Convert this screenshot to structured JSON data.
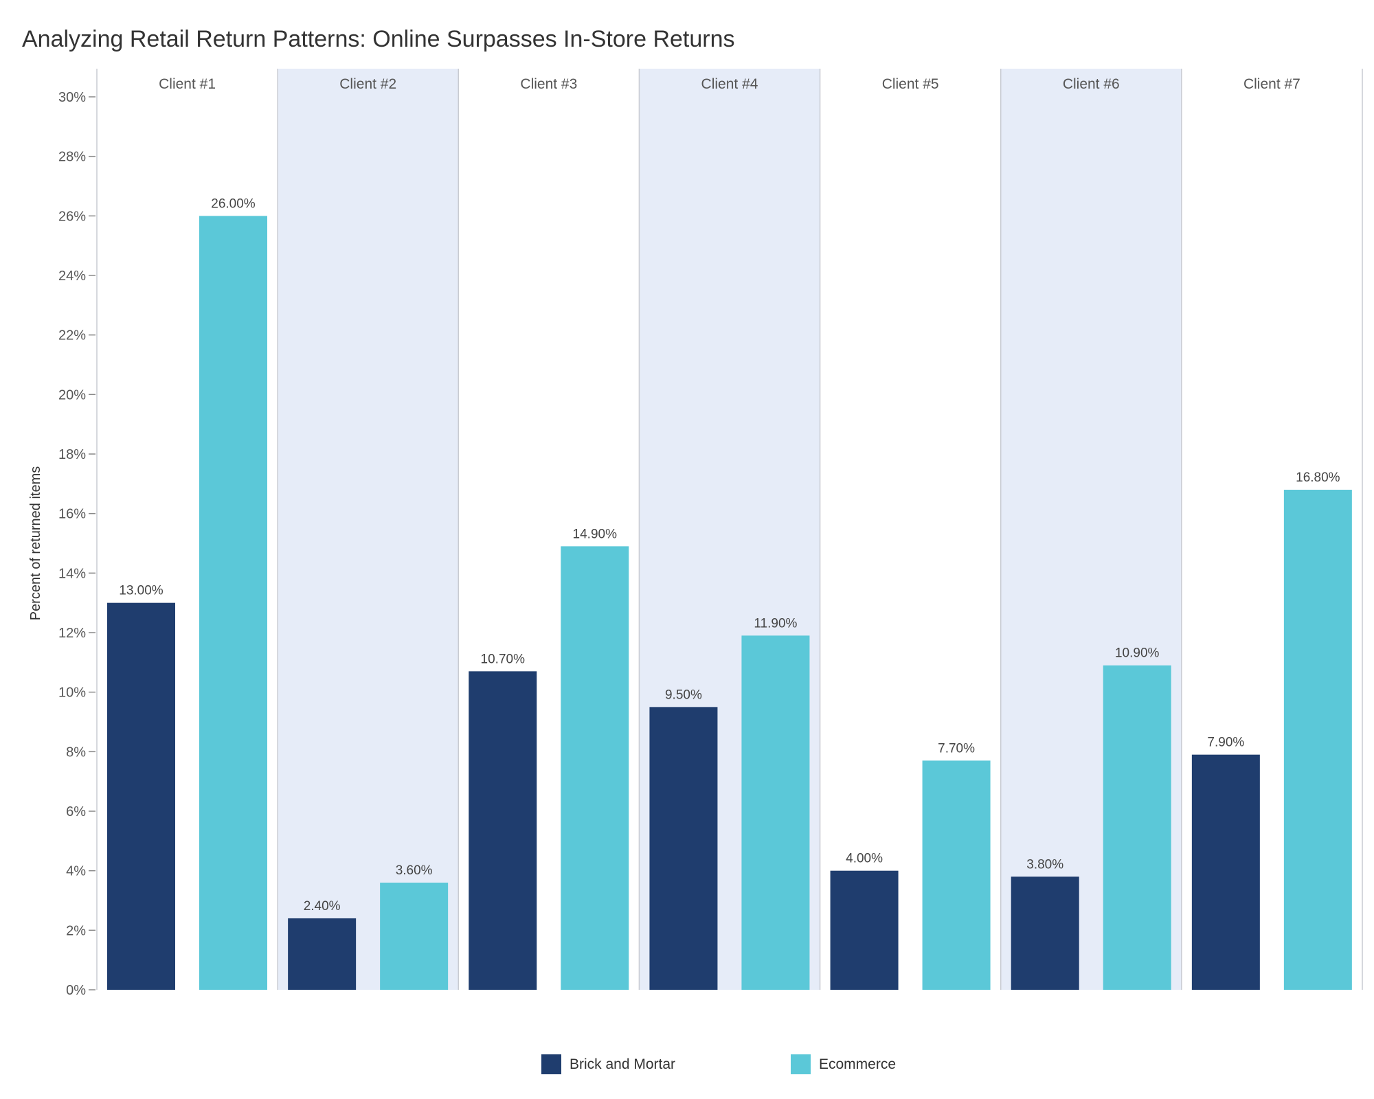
{
  "chart_data": {
    "type": "bar",
    "title": "Analyzing Retail Return Patterns: Online Surpasses In-Store Returns",
    "ylabel": "Percent of returned items",
    "xlabel": "",
    "ylim": [
      0,
      30
    ],
    "yticks": [
      "0%",
      "2%",
      "4%",
      "6%",
      "8%",
      "10%",
      "12%",
      "14%",
      "16%",
      "18%",
      "20%",
      "22%",
      "24%",
      "26%",
      "28%",
      "30%"
    ],
    "categories": [
      "Client #1",
      "Client #2",
      "Client #3",
      "Client #4",
      "Client #5",
      "Client #6",
      "Client #7"
    ],
    "series": [
      {
        "name": "Brick and Mortar",
        "color": "#1f3d6e",
        "values": [
          13.0,
          2.4,
          10.7,
          9.5,
          4.0,
          3.8,
          7.9
        ],
        "labels": [
          "13.00%",
          "2.40%",
          "10.70%",
          "9.50%",
          "4.00%",
          "3.80%",
          "7.90%"
        ]
      },
      {
        "name": "Ecommerce",
        "color": "#5bc8d8",
        "values": [
          26.0,
          3.6,
          14.9,
          11.9,
          7.7,
          10.9,
          16.8
        ],
        "labels": [
          "26.00%",
          "3.60%",
          "14.90%",
          "11.90%",
          "7.70%",
          "10.90%",
          "16.80%"
        ]
      }
    ],
    "alternate_band_color": "#e6ecf8",
    "grid": false,
    "legend_position": "bottom"
  }
}
